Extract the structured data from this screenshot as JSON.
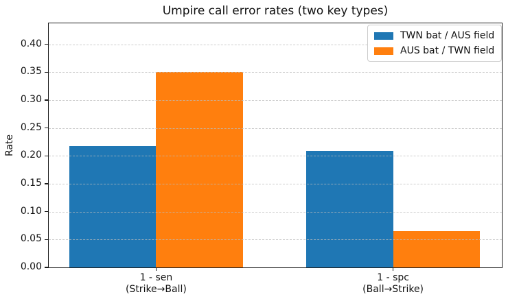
{
  "chart_data": {
    "type": "bar",
    "title": "Umpire call error rates (two key types)",
    "ylabel": "Rate",
    "xlabel": "",
    "categories": [
      "1 - sen\n(Strike→Ball)",
      "1 - spc\n(Ball→Strike)"
    ],
    "category_keys": [
      "sen",
      "spc"
    ],
    "series": [
      {
        "name": "TWN bat / AUS field",
        "key": "twn",
        "color": "#1f77b4",
        "values": [
          0.218,
          0.209
        ]
      },
      {
        "name": "AUS bat / TWN field",
        "key": "aus",
        "color": "#ff7f0e",
        "values": [
          0.35,
          0.065
        ]
      }
    ],
    "yticks": [
      0,
      0.05,
      0.1,
      0.15,
      0.2,
      0.25,
      0.3,
      0.35,
      0.4
    ],
    "ytick_labels": [
      "0.00",
      "0.05",
      "0.10",
      "0.15",
      "0.20",
      "0.25",
      "0.30",
      "0.35",
      "0.40"
    ],
    "ylim": [
      0,
      0.4375
    ],
    "grid": {
      "axis": "y",
      "style": "dashed",
      "drawn_above_bars": true
    },
    "legend_position": "upper right",
    "layout": {
      "group_centers_frac": [
        0.237,
        0.76
      ],
      "bar_width_frac": 0.192
    }
  }
}
